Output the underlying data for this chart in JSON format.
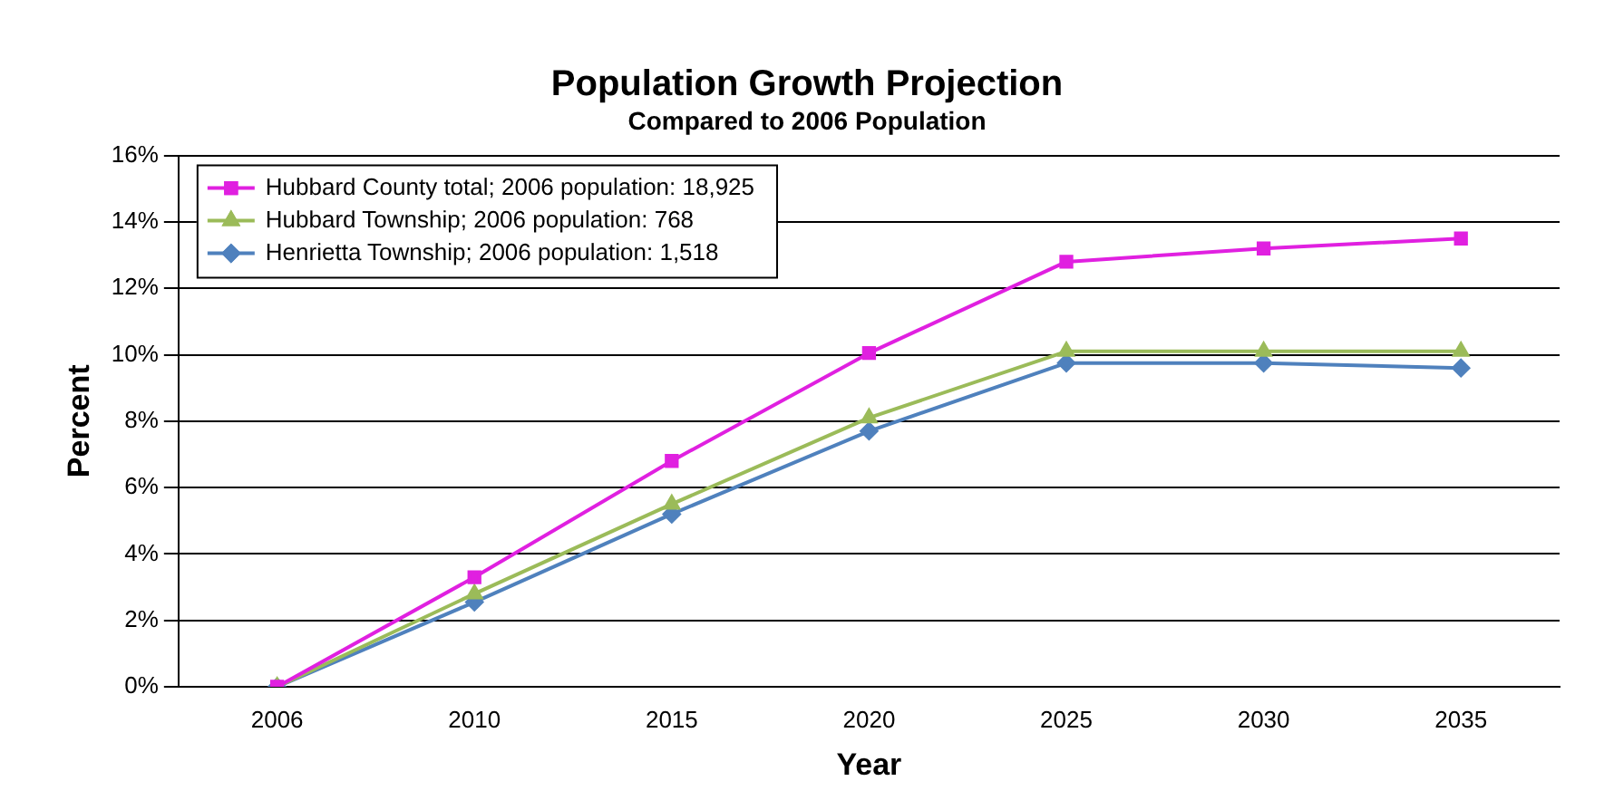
{
  "chart_data": {
    "type": "line",
    "title": "Population Growth Projection",
    "subtitle": "Compared to 2006 Population",
    "xlabel": "Year",
    "ylabel": "Percent",
    "categories": [
      "2006",
      "2010",
      "2015",
      "2020",
      "2025",
      "2030",
      "2035"
    ],
    "series": [
      {
        "name": "Hubbard County total; 2006 population: 18,925",
        "color": "#e020e0",
        "marker": "square",
        "values": [
          0,
          3.3,
          6.8,
          10.05,
          12.8,
          13.2,
          13.5
        ]
      },
      {
        "name": "Hubbard Township; 2006 population: 768",
        "color": "#9bbb59",
        "marker": "triangle",
        "values": [
          0,
          2.8,
          5.5,
          8.1,
          10.1,
          10.1,
          10.1
        ]
      },
      {
        "name": "Henrietta Township; 2006 population: 1,518",
        "color": "#4f81bd",
        "marker": "diamond",
        "values": [
          0,
          2.55,
          5.2,
          7.7,
          9.75,
          9.75,
          9.6
        ]
      }
    ],
    "ylim": [
      0,
      16
    ],
    "yticks": [
      {
        "value": 0,
        "label": "0%"
      },
      {
        "value": 2,
        "label": "2%"
      },
      {
        "value": 4,
        "label": "4%"
      },
      {
        "value": 6,
        "label": "6%"
      },
      {
        "value": 8,
        "label": "8%"
      },
      {
        "value": 10,
        "label": "10%"
      },
      {
        "value": 12,
        "label": "12%"
      },
      {
        "value": 14,
        "label": "14%"
      },
      {
        "value": 16,
        "label": "16%"
      }
    ],
    "grid": "y",
    "legend": "top left"
  }
}
